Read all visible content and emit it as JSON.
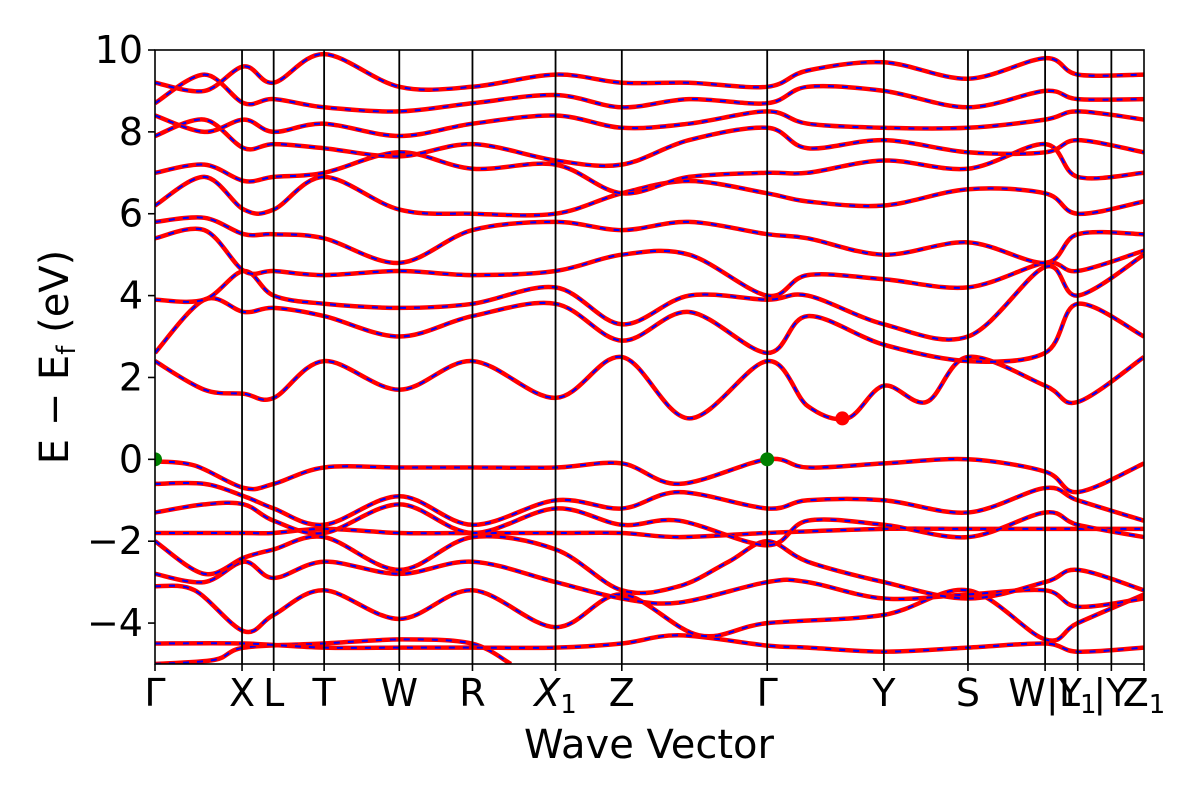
{
  "chart_data": {
    "type": "line",
    "title": "",
    "xlabel": "Wave Vector",
    "ylabel_parts": {
      "main": "E − E",
      "sub": "f",
      "tail": " (eV)"
    },
    "ylim": [
      -5,
      10
    ],
    "yticks": [
      -4,
      -2,
      0,
      2,
      4,
      6,
      8,
      10
    ],
    "yticks_text": [
      "−4",
      "−2",
      "0",
      "2",
      "4",
      "6",
      "8",
      "10"
    ],
    "grid": false,
    "kpath": [
      {
        "label": "Γ",
        "x": 0.0
      },
      {
        "label": "X",
        "x": 0.088
      },
      {
        "label": "L",
        "x": 0.12
      },
      {
        "label": "T",
        "x": 0.171
      },
      {
        "label": "W",
        "x": 0.247
      },
      {
        "label": "R",
        "x": 0.321
      },
      {
        "label": "X",
        "sub": "1",
        "x": 0.405
      },
      {
        "label": "Z",
        "x": 0.472
      },
      {
        "label": "Γ",
        "x": 0.619
      },
      {
        "label": "Y",
        "x": 0.737
      },
      {
        "label": "S",
        "x": 0.822
      },
      {
        "label": "W|Y",
        "x": 0.9
      },
      {
        "label": "L",
        "sub": "1",
        "x": 0.933
      },
      {
        "label": "|Y",
        "x": 0.967
      },
      {
        "label": "Z",
        "sub": "1",
        "x": 1.0
      }
    ],
    "series_style": [
      {
        "color": "#ff0000",
        "style": "solid"
      },
      {
        "color": "#0000ff",
        "style": "dashed"
      }
    ],
    "bands": [
      [
        [
          0,
          -5.0
        ],
        [
          0.06,
          -4.9
        ],
        [
          0.09,
          -4.6
        ],
        [
          0.17,
          -4.5
        ],
        [
          0.25,
          -4.4
        ],
        [
          0.32,
          -4.5
        ],
        [
          0.36,
          -5.0
        ]
      ],
      [
        [
          0,
          -4.5
        ],
        [
          0.09,
          -4.5
        ],
        [
          0.17,
          -4.6
        ],
        [
          0.25,
          -4.6
        ],
        [
          0.32,
          -4.6
        ],
        [
          0.405,
          -4.6
        ],
        [
          0.472,
          -4.5
        ],
        [
          0.53,
          -4.3
        ],
        [
          0.619,
          -4.55
        ],
        [
          0.66,
          -4.6
        ],
        [
          0.737,
          -4.7
        ],
        [
          0.822,
          -4.6
        ],
        [
          0.9,
          -4.5
        ],
        [
          0.933,
          -4.7
        ],
        [
          1.0,
          -4.6
        ]
      ],
      [
        [
          0,
          -3.1
        ],
        [
          0.04,
          -3.2
        ],
        [
          0.09,
          -4.2
        ],
        [
          0.12,
          -3.8
        ],
        [
          0.171,
          -3.2
        ],
        [
          0.247,
          -3.9
        ],
        [
          0.321,
          -3.2
        ],
        [
          0.405,
          -4.1
        ],
        [
          0.472,
          -3.3
        ],
        [
          0.55,
          -4.3
        ],
        [
          0.619,
          -4.0
        ],
        [
          0.737,
          -3.8
        ],
        [
          0.822,
          -3.2
        ],
        [
          0.9,
          -4.4
        ],
        [
          0.933,
          -4.0
        ],
        [
          1.0,
          -3.3
        ]
      ],
      [
        [
          0,
          -2.8
        ],
        [
          0.05,
          -3.0
        ],
        [
          0.09,
          -2.5
        ],
        [
          0.12,
          -2.9
        ],
        [
          0.171,
          -2.5
        ],
        [
          0.247,
          -2.8
        ],
        [
          0.321,
          -2.5
        ],
        [
          0.405,
          -3.0
        ],
        [
          0.472,
          -3.4
        ],
        [
          0.53,
          -3.5
        ],
        [
          0.619,
          -3.0
        ],
        [
          0.66,
          -3.0
        ],
        [
          0.737,
          -3.4
        ],
        [
          0.822,
          -3.3
        ],
        [
          0.9,
          -3.2
        ],
        [
          0.933,
          -3.6
        ],
        [
          1.0,
          -3.4
        ]
      ],
      [
        [
          0,
          -2.0
        ],
        [
          0.05,
          -2.8
        ],
        [
          0.09,
          -2.4
        ],
        [
          0.12,
          -2.2
        ],
        [
          0.171,
          -1.9
        ],
        [
          0.247,
          -2.7
        ],
        [
          0.321,
          -1.9
        ],
        [
          0.405,
          -2.2
        ],
        [
          0.472,
          -3.2
        ],
        [
          0.53,
          -3.1
        ],
        [
          0.58,
          -2.5
        ],
        [
          0.619,
          -2.0
        ],
        [
          0.66,
          -2.5
        ],
        [
          0.737,
          -3.0
        ],
        [
          0.822,
          -3.4
        ],
        [
          0.9,
          -3.0
        ],
        [
          0.933,
          -2.7
        ],
        [
          1.0,
          -3.2
        ]
      ],
      [
        [
          0,
          -1.8
        ],
        [
          0.09,
          -1.8
        ],
        [
          0.12,
          -1.8
        ],
        [
          0.171,
          -1.7
        ],
        [
          0.247,
          -1.8
        ],
        [
          0.321,
          -1.8
        ],
        [
          0.405,
          -1.8
        ],
        [
          0.472,
          -1.8
        ],
        [
          0.53,
          -1.9
        ],
        [
          0.619,
          -1.8
        ],
        [
          0.737,
          -1.7
        ],
        [
          0.822,
          -1.7
        ],
        [
          0.9,
          -1.7
        ],
        [
          0.933,
          -1.7
        ],
        [
          1.0,
          -1.7
        ]
      ],
      [
        [
          0,
          -1.3
        ],
        [
          0.05,
          -1.1
        ],
        [
          0.09,
          -1.1
        ],
        [
          0.12,
          -1.5
        ],
        [
          0.171,
          -1.8
        ],
        [
          0.247,
          -1.1
        ],
        [
          0.321,
          -1.8
        ],
        [
          0.405,
          -1.2
        ],
        [
          0.472,
          -1.6
        ],
        [
          0.53,
          -1.5
        ],
        [
          0.619,
          -2.1
        ],
        [
          0.66,
          -1.5
        ],
        [
          0.737,
          -1.6
        ],
        [
          0.822,
          -1.9
        ],
        [
          0.9,
          -1.3
        ],
        [
          0.933,
          -1.6
        ],
        [
          1.0,
          -1.9
        ]
      ],
      [
        [
          0,
          -0.6
        ],
        [
          0.05,
          -0.6
        ],
        [
          0.09,
          -0.9
        ],
        [
          0.12,
          -1.2
        ],
        [
          0.171,
          -1.6
        ],
        [
          0.247,
          -0.9
        ],
        [
          0.321,
          -1.6
        ],
        [
          0.405,
          -1.0
        ],
        [
          0.472,
          -1.2
        ],
        [
          0.53,
          -0.8
        ],
        [
          0.619,
          -1.2
        ],
        [
          0.66,
          -1.0
        ],
        [
          0.737,
          -1.0
        ],
        [
          0.822,
          -1.3
        ],
        [
          0.9,
          -0.7
        ],
        [
          0.933,
          -1.0
        ],
        [
          1.0,
          -1.5
        ]
      ],
      [
        [
          0,
          -0.05
        ],
        [
          0.04,
          -0.15
        ],
        [
          0.09,
          -0.7
        ],
        [
          0.12,
          -0.6
        ],
        [
          0.171,
          -0.2
        ],
        [
          0.247,
          -0.2
        ],
        [
          0.321,
          -0.2
        ],
        [
          0.405,
          -0.2
        ],
        [
          0.472,
          -0.1
        ],
        [
          0.53,
          -0.6
        ],
        [
          0.619,
          0.0
        ],
        [
          0.66,
          -0.2
        ],
        [
          0.737,
          -0.1
        ],
        [
          0.822,
          0.0
        ],
        [
          0.9,
          -0.3
        ],
        [
          0.933,
          -0.8
        ],
        [
          1.0,
          -0.1
        ]
      ],
      [
        [
          0,
          2.4
        ],
        [
          0.05,
          1.7
        ],
        [
          0.09,
          1.6
        ],
        [
          0.12,
          1.5
        ],
        [
          0.171,
          2.4
        ],
        [
          0.247,
          1.7
        ],
        [
          0.321,
          2.4
        ],
        [
          0.405,
          1.5
        ],
        [
          0.472,
          2.5
        ],
        [
          0.54,
          1.0
        ],
        [
          0.619,
          2.4
        ],
        [
          0.66,
          1.3
        ],
        [
          0.7,
          1.0
        ],
        [
          0.737,
          1.8
        ],
        [
          0.78,
          1.4
        ],
        [
          0.822,
          2.5
        ],
        [
          0.9,
          1.8
        ],
        [
          0.933,
          1.4
        ],
        [
          1.0,
          2.5
        ]
      ],
      [
        [
          0,
          2.6
        ],
        [
          0.05,
          3.9
        ],
        [
          0.09,
          3.6
        ],
        [
          0.12,
          3.7
        ],
        [
          0.171,
          3.5
        ],
        [
          0.247,
          3.0
        ],
        [
          0.321,
          3.5
        ],
        [
          0.405,
          3.8
        ],
        [
          0.472,
          2.9
        ],
        [
          0.54,
          3.6
        ],
        [
          0.619,
          2.6
        ],
        [
          0.66,
          3.5
        ],
        [
          0.737,
          2.8
        ],
        [
          0.822,
          2.4
        ],
        [
          0.9,
          2.6
        ],
        [
          0.933,
          3.8
        ],
        [
          1.0,
          3.0
        ]
      ],
      [
        [
          0,
          3.9
        ],
        [
          0.05,
          3.9
        ],
        [
          0.09,
          4.6
        ],
        [
          0.12,
          4.0
        ],
        [
          0.171,
          3.8
        ],
        [
          0.247,
          3.7
        ],
        [
          0.321,
          3.8
        ],
        [
          0.405,
          4.2
        ],
        [
          0.472,
          3.3
        ],
        [
          0.54,
          4.0
        ],
        [
          0.619,
          3.9
        ],
        [
          0.66,
          4.0
        ],
        [
          0.737,
          3.3
        ],
        [
          0.822,
          3.0
        ],
        [
          0.9,
          4.7
        ],
        [
          0.933,
          4.0
        ],
        [
          1.0,
          5.0
        ]
      ],
      [
        [
          0,
          5.4
        ],
        [
          0.05,
          5.6
        ],
        [
          0.09,
          4.6
        ],
        [
          0.12,
          4.6
        ],
        [
          0.171,
          4.5
        ],
        [
          0.247,
          4.6
        ],
        [
          0.321,
          4.5
        ],
        [
          0.405,
          4.6
        ],
        [
          0.472,
          5.0
        ],
        [
          0.54,
          5.0
        ],
        [
          0.619,
          4.0
        ],
        [
          0.66,
          4.5
        ],
        [
          0.737,
          4.4
        ],
        [
          0.822,
          4.2
        ],
        [
          0.9,
          4.8
        ],
        [
          0.933,
          4.6
        ],
        [
          1.0,
          5.1
        ]
      ],
      [
        [
          0,
          5.8
        ],
        [
          0.05,
          5.9
        ],
        [
          0.09,
          5.5
        ],
        [
          0.12,
          5.5
        ],
        [
          0.171,
          5.4
        ],
        [
          0.247,
          4.8
        ],
        [
          0.321,
          5.6
        ],
        [
          0.405,
          5.8
        ],
        [
          0.472,
          5.6
        ],
        [
          0.54,
          5.8
        ],
        [
          0.619,
          5.5
        ],
        [
          0.66,
          5.4
        ],
        [
          0.737,
          5.0
        ],
        [
          0.822,
          5.3
        ],
        [
          0.9,
          4.8
        ],
        [
          0.933,
          5.5
        ],
        [
          1.0,
          5.5
        ]
      ],
      [
        [
          0,
          6.2
        ],
        [
          0.05,
          6.9
        ],
        [
          0.09,
          6.1
        ],
        [
          0.12,
          6.1
        ],
        [
          0.171,
          6.9
        ],
        [
          0.247,
          6.1
        ],
        [
          0.321,
          6.0
        ],
        [
          0.405,
          6.0
        ],
        [
          0.472,
          6.5
        ],
        [
          0.54,
          6.8
        ],
        [
          0.619,
          6.5
        ],
        [
          0.66,
          6.3
        ],
        [
          0.737,
          6.2
        ],
        [
          0.822,
          6.6
        ],
        [
          0.9,
          6.5
        ],
        [
          0.933,
          6.0
        ],
        [
          1.0,
          6.3
        ]
      ],
      [
        [
          0,
          7.0
        ],
        [
          0.05,
          7.2
        ],
        [
          0.09,
          6.8
        ],
        [
          0.12,
          6.9
        ],
        [
          0.171,
          7.0
        ],
        [
          0.247,
          7.5
        ],
        [
          0.321,
          7.1
        ],
        [
          0.405,
          7.2
        ],
        [
          0.472,
          6.5
        ],
        [
          0.54,
          6.9
        ],
        [
          0.619,
          7.0
        ],
        [
          0.66,
          7.0
        ],
        [
          0.737,
          7.3
        ],
        [
          0.822,
          7.1
        ],
        [
          0.9,
          7.7
        ],
        [
          0.933,
          6.9
        ],
        [
          1.0,
          7.0
        ]
      ],
      [
        [
          0,
          7.9
        ],
        [
          0.05,
          8.3
        ],
        [
          0.09,
          7.6
        ],
        [
          0.12,
          7.7
        ],
        [
          0.171,
          7.6
        ],
        [
          0.247,
          7.4
        ],
        [
          0.321,
          7.7
        ],
        [
          0.405,
          7.3
        ],
        [
          0.472,
          7.2
        ],
        [
          0.54,
          7.8
        ],
        [
          0.619,
          8.1
        ],
        [
          0.66,
          7.6
        ],
        [
          0.737,
          7.8
        ],
        [
          0.822,
          7.5
        ],
        [
          0.9,
          7.5
        ],
        [
          0.933,
          7.8
        ],
        [
          1.0,
          7.5
        ]
      ],
      [
        [
          0,
          8.4
        ],
        [
          0.05,
          8.0
        ],
        [
          0.09,
          8.3
        ],
        [
          0.12,
          8.0
        ],
        [
          0.171,
          8.2
        ],
        [
          0.247,
          7.9
        ],
        [
          0.321,
          8.2
        ],
        [
          0.405,
          8.4
        ],
        [
          0.472,
          8.1
        ],
        [
          0.54,
          8.2
        ],
        [
          0.619,
          8.5
        ],
        [
          0.66,
          8.2
        ],
        [
          0.737,
          8.1
        ],
        [
          0.822,
          8.1
        ],
        [
          0.9,
          8.3
        ],
        [
          0.933,
          8.5
        ],
        [
          1.0,
          8.3
        ]
      ],
      [
        [
          0,
          8.7
        ],
        [
          0.05,
          9.4
        ],
        [
          0.09,
          8.7
        ],
        [
          0.12,
          8.8
        ],
        [
          0.171,
          8.6
        ],
        [
          0.247,
          8.5
        ],
        [
          0.321,
          8.7
        ],
        [
          0.405,
          8.9
        ],
        [
          0.472,
          8.6
        ],
        [
          0.54,
          8.8
        ],
        [
          0.619,
          8.7
        ],
        [
          0.66,
          9.1
        ],
        [
          0.737,
          9.0
        ],
        [
          0.822,
          8.6
        ],
        [
          0.9,
          9.0
        ],
        [
          0.933,
          8.8
        ],
        [
          1.0,
          8.8
        ]
      ],
      [
        [
          0,
          9.2
        ],
        [
          0.05,
          9.0
        ],
        [
          0.09,
          9.6
        ],
        [
          0.12,
          9.2
        ],
        [
          0.171,
          9.9
        ],
        [
          0.247,
          9.1
        ],
        [
          0.321,
          9.1
        ],
        [
          0.405,
          9.4
        ],
        [
          0.472,
          9.2
        ],
        [
          0.54,
          9.2
        ],
        [
          0.619,
          9.1
        ],
        [
          0.66,
          9.5
        ],
        [
          0.737,
          9.7
        ],
        [
          0.822,
          9.3
        ],
        [
          0.9,
          9.8
        ],
        [
          0.933,
          9.4
        ],
        [
          1.0,
          9.4
        ]
      ]
    ],
    "vbm_points": [
      [
        0.0,
        0.0
      ],
      [
        0.619,
        0.0
      ]
    ],
    "cbm_point": [
      0.695,
      1.0
    ],
    "vbm_color": "#008000",
    "cbm_color": "#ff0000"
  }
}
